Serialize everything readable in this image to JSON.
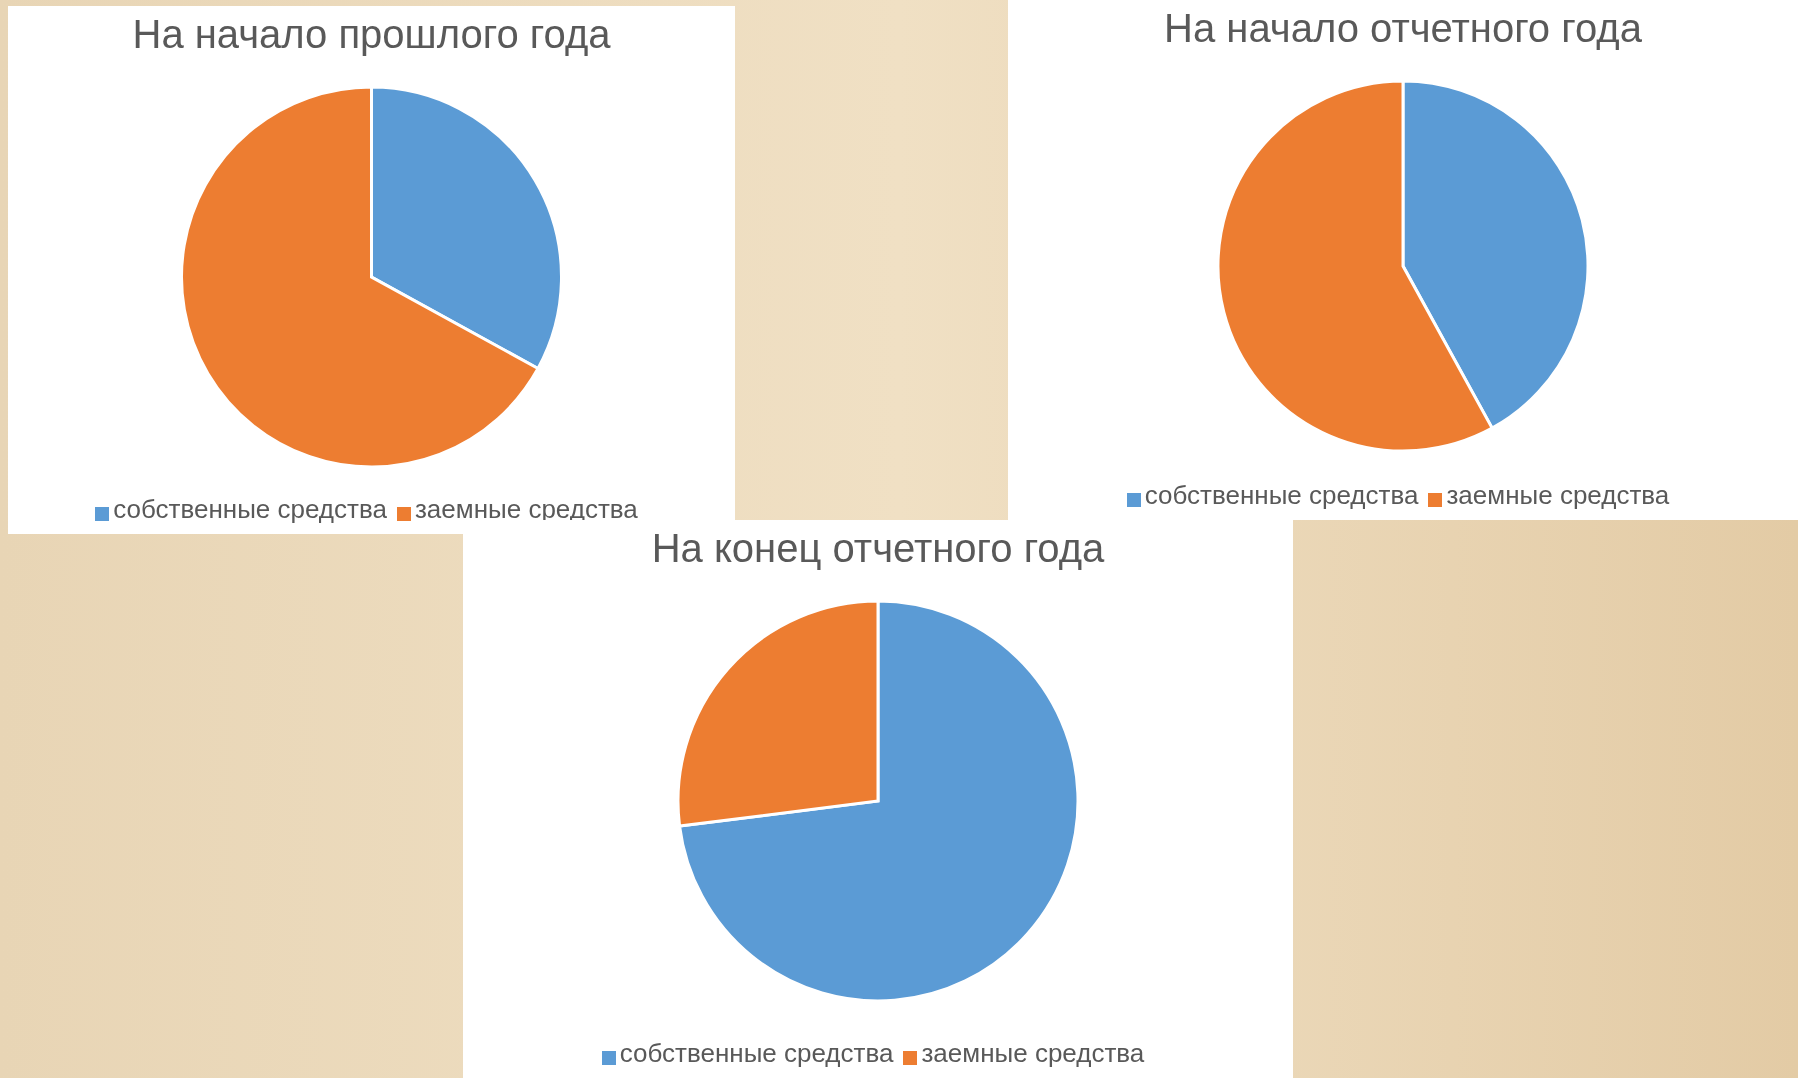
{
  "chart_data": [
    {
      "type": "pie",
      "title": "На начало прошлого года",
      "categories": [
        "собственные средства",
        "заемные средства"
      ],
      "values": [
        33,
        67
      ],
      "colors": [
        "#5b9bd5",
        "#ed7d31"
      ],
      "legend": "bottom"
    },
    {
      "type": "pie",
      "title": "На начало отчетного года",
      "categories": [
        "собственные средства",
        "заемные средства"
      ],
      "values": [
        42,
        58
      ],
      "colors": [
        "#5b9bd5",
        "#ed7d31"
      ],
      "legend": "bottom"
    },
    {
      "type": "pie",
      "title": "На конец отчетного года",
      "categories": [
        "собственные средства",
        "заемные средства"
      ],
      "values": [
        73,
        27
      ],
      "colors": [
        "#5b9bd5",
        "#ed7d31"
      ],
      "legend": "bottom"
    }
  ]
}
